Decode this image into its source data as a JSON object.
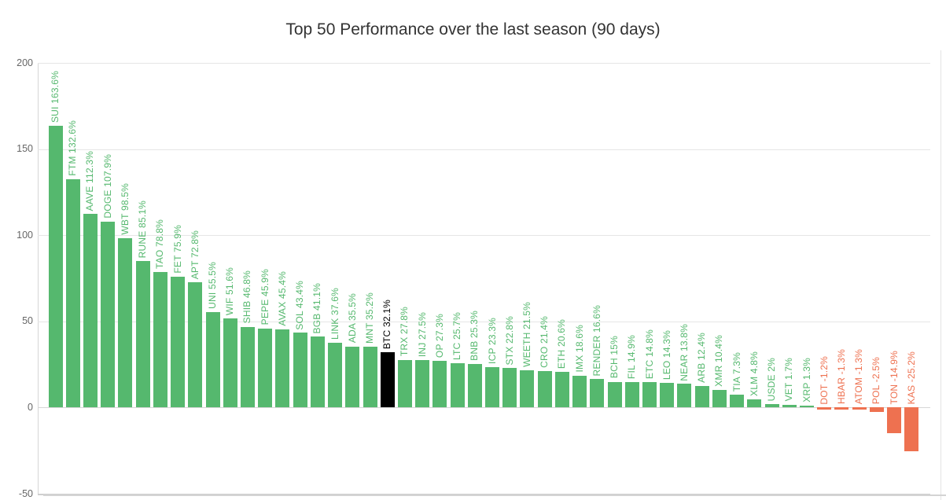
{
  "chart_data": {
    "type": "bar",
    "title": "Top 50 Performance over the last season (90 days)",
    "xlabel": "",
    "ylabel": "",
    "unit": "%",
    "ylim": [
      -50,
      200
    ],
    "yticks": [
      200,
      150,
      100,
      50,
      0,
      -50
    ],
    "grid": true,
    "legend": "none",
    "colors": {
      "green": "#55b86e",
      "red": "#ee7150",
      "black": "#000000",
      "grid": "#e6e6e6",
      "axis_text": "#666666",
      "title_text": "#333333"
    },
    "points": [
      {
        "symbol": "SUI",
        "value": 163.6,
        "label": "SUI 163.6%",
        "color": "green"
      },
      {
        "symbol": "FTM",
        "value": 132.6,
        "label": "FTM 132.6%",
        "color": "green"
      },
      {
        "symbol": "AAVE",
        "value": 112.3,
        "label": "AAVE 112.3%",
        "color": "green"
      },
      {
        "symbol": "DOGE",
        "value": 107.9,
        "label": "DOGE 107.9%",
        "color": "green"
      },
      {
        "symbol": "WBT",
        "value": 98.5,
        "label": "WBT 98.5%",
        "color": "green"
      },
      {
        "symbol": "RUNE",
        "value": 85.1,
        "label": "RUNE 85.1%",
        "color": "green"
      },
      {
        "symbol": "TAO",
        "value": 78.8,
        "label": "TAO 78.8%",
        "color": "green"
      },
      {
        "symbol": "FET",
        "value": 75.9,
        "label": "FET 75.9%",
        "color": "green"
      },
      {
        "symbol": "APT",
        "value": 72.8,
        "label": "APT 72.8%",
        "color": "green"
      },
      {
        "symbol": "UNI",
        "value": 55.5,
        "label": "UNI 55.5%",
        "color": "green"
      },
      {
        "symbol": "WIF",
        "value": 51.6,
        "label": "WIF 51.6%",
        "color": "green"
      },
      {
        "symbol": "SHIB",
        "value": 46.8,
        "label": "SHIB 46.8%",
        "color": "green"
      },
      {
        "symbol": "PEPE",
        "value": 45.9,
        "label": "PEPE 45.9%",
        "color": "green"
      },
      {
        "symbol": "AVAX",
        "value": 45.4,
        "label": "AVAX 45.4%",
        "color": "green"
      },
      {
        "symbol": "SOL",
        "value": 43.4,
        "label": "SOL 43.4%",
        "color": "green"
      },
      {
        "symbol": "BGB",
        "value": 41.1,
        "label": "BGB 41.1%",
        "color": "green"
      },
      {
        "symbol": "LINK",
        "value": 37.6,
        "label": "LINK 37.6%",
        "color": "green"
      },
      {
        "symbol": "ADA",
        "value": 35.5,
        "label": "ADA 35.5%",
        "color": "green"
      },
      {
        "symbol": "MNT",
        "value": 35.2,
        "label": "MNT 35.2%",
        "color": "green"
      },
      {
        "symbol": "BTC",
        "value": 32.1,
        "label": "BTC 32.1%",
        "color": "black"
      },
      {
        "symbol": "TRX",
        "value": 27.8,
        "label": "TRX 27.8%",
        "color": "green"
      },
      {
        "symbol": "INJ",
        "value": 27.5,
        "label": "INJ 27.5%",
        "color": "green"
      },
      {
        "symbol": "OP",
        "value": 27.3,
        "label": "OP 27.3%",
        "color": "green"
      },
      {
        "symbol": "LTC",
        "value": 25.7,
        "label": "LTC 25.7%",
        "color": "green"
      },
      {
        "symbol": "BNB",
        "value": 25.3,
        "label": "BNB 25.3%",
        "color": "green"
      },
      {
        "symbol": "ICP",
        "value": 23.3,
        "label": "ICP 23.3%",
        "color": "green"
      },
      {
        "symbol": "STX",
        "value": 22.8,
        "label": "STX 22.8%",
        "color": "green"
      },
      {
        "symbol": "WEETH",
        "value": 21.5,
        "label": "WEETH 21.5%",
        "color": "green"
      },
      {
        "symbol": "CRO",
        "value": 21.4,
        "label": "CRO 21.4%",
        "color": "green"
      },
      {
        "symbol": "ETH",
        "value": 20.6,
        "label": "ETH 20.6%",
        "color": "green"
      },
      {
        "symbol": "IMX",
        "value": 18.6,
        "label": "IMX 18.6%",
        "color": "green"
      },
      {
        "symbol": "RENDER",
        "value": 16.6,
        "label": "RENDER 16.6%",
        "color": "green"
      },
      {
        "symbol": "BCH",
        "value": 15,
        "label": "BCH 15%",
        "color": "green"
      },
      {
        "symbol": "FIL",
        "value": 14.9,
        "label": "FIL 14.9%",
        "color": "green"
      },
      {
        "symbol": "ETC",
        "value": 14.8,
        "label": "ETC 14.8%",
        "color": "green"
      },
      {
        "symbol": "LEO",
        "value": 14.3,
        "label": "LEO 14.3%",
        "color": "green"
      },
      {
        "symbol": "NEAR",
        "value": 13.8,
        "label": "NEAR 13.8%",
        "color": "green"
      },
      {
        "symbol": "ARB",
        "value": 12.4,
        "label": "ARB 12.4%",
        "color": "green"
      },
      {
        "symbol": "XMR",
        "value": 10.4,
        "label": "XMR 10.4%",
        "color": "green"
      },
      {
        "symbol": "TIA",
        "value": 7.3,
        "label": "TIA 7.3%",
        "color": "green"
      },
      {
        "symbol": "XLM",
        "value": 4.8,
        "label": "XLM 4.8%",
        "color": "green"
      },
      {
        "symbol": "USDE",
        "value": 2,
        "label": "USDE 2%",
        "color": "green"
      },
      {
        "symbol": "VET",
        "value": 1.7,
        "label": "VET 1.7%",
        "color": "green"
      },
      {
        "symbol": "XRP",
        "value": 1.3,
        "label": "XRP 1.3%",
        "color": "green"
      },
      {
        "symbol": "DOT",
        "value": -1.2,
        "label": "DOT -1.2%",
        "color": "red"
      },
      {
        "symbol": "HBAR",
        "value": -1.3,
        "label": "HBAR -1.3%",
        "color": "red"
      },
      {
        "symbol": "ATOM",
        "value": -1.3,
        "label": "ATOM -1.3%",
        "color": "red"
      },
      {
        "symbol": "POL",
        "value": -2.5,
        "label": "POL -2.5%",
        "color": "red"
      },
      {
        "symbol": "TON",
        "value": -14.9,
        "label": "TON -14.9%",
        "color": "red"
      },
      {
        "symbol": "KAS",
        "value": -25.2,
        "label": "KAS -25.2%",
        "color": "red"
      }
    ]
  }
}
